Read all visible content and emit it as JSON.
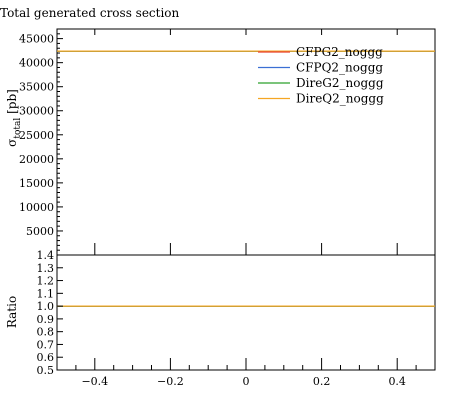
{
  "chart_data": [
    {
      "type": "line",
      "panel": "main",
      "title": "Total generated cross section",
      "ylabel": "σ_total [pb]",
      "xlim": [
        -0.5,
        0.5
      ],
      "ylim": [
        0,
        47000
      ],
      "yticks": [
        5000,
        10000,
        15000,
        20000,
        25000,
        30000,
        35000,
        40000,
        45000
      ],
      "ytick_labels": [
        "5000",
        "10000",
        "15000",
        "20000",
        "25000",
        "30000",
        "35000",
        "40000",
        "45000"
      ],
      "grid": false,
      "legend_position": "top-right",
      "series": [
        {
          "name": "CFPG2_noggg",
          "color": "#e8412e",
          "x": [
            -0.5,
            0.5
          ],
          "y": [
            42400,
            42400
          ]
        },
        {
          "name": "CFPQ2_noggg",
          "color": "#3b6fd4",
          "x": [
            -0.5,
            0.5
          ],
          "y": [
            42400,
            42400
          ]
        },
        {
          "name": "DireG2_noggg",
          "color": "#2ca02c",
          "x": [
            -0.5,
            0.5
          ],
          "y": [
            42400,
            42400
          ]
        },
        {
          "name": "DireQ2_noggg",
          "color": "#f5a623",
          "x": [
            -0.5,
            0.5
          ],
          "y": [
            42400,
            42400
          ]
        }
      ]
    },
    {
      "type": "line",
      "panel": "ratio",
      "ylabel": "Ratio",
      "xlim": [
        -0.5,
        0.5
      ],
      "ylim": [
        0.5,
        1.4
      ],
      "xticks": [
        -0.4,
        -0.2,
        0,
        0.2,
        0.4
      ],
      "xtick_labels": [
        "−0.4",
        "−0.2",
        "0",
        "0.2",
        "0.4"
      ],
      "yticks": [
        0.5,
        0.6,
        0.7,
        0.8,
        0.9,
        1.0,
        1.1,
        1.2,
        1.3,
        1.4
      ],
      "ytick_labels": [
        "0.5",
        "0.6",
        "0.7",
        "0.8",
        "0.9",
        "1.0",
        "1.1",
        "1.2",
        "1.3",
        "1.4"
      ],
      "series": [
        {
          "name": "CFPG2_noggg",
          "color": "#e8412e",
          "x": [
            -0.5,
            0.5
          ],
          "y": [
            1.0,
            1.0
          ]
        },
        {
          "name": "CFPQ2_noggg",
          "color": "#3b6fd4",
          "x": [
            -0.5,
            0.5
          ],
          "y": [
            1.0,
            1.0
          ]
        },
        {
          "name": "DireG2_noggg",
          "color": "#2ca02c",
          "x": [
            -0.5,
            0.5
          ],
          "y": [
            1.0,
            1.0
          ]
        },
        {
          "name": "DireQ2_noggg",
          "color": "#f5a623",
          "x": [
            -0.5,
            0.5
          ],
          "y": [
            1.0,
            1.0
          ]
        }
      ]
    }
  ]
}
